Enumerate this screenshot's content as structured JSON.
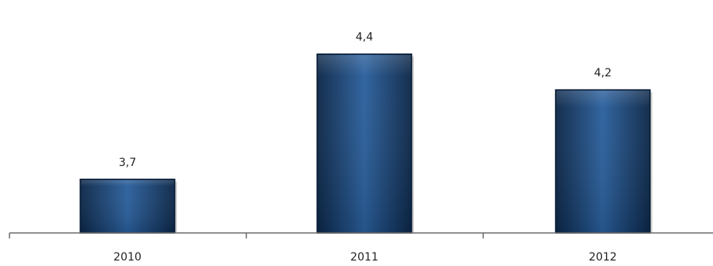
{
  "chart_data": {
    "type": "bar",
    "title": "",
    "xlabel": "",
    "ylabel": "",
    "categories": [
      "2010",
      "2011",
      "2012"
    ],
    "values": [
      3.7,
      4.4,
      4.2
    ],
    "value_labels": [
      "3,7",
      "4,4",
      "4,2"
    ],
    "ylim": [
      3.4,
      4.5
    ],
    "grid": false,
    "legend": "none",
    "colors": {
      "bar_fill": "#143f73",
      "bar_light": "#2a5f9c",
      "bar_dark": "#0b2647",
      "bar_border": "#071a33",
      "axis": "#6d6d6d"
    }
  }
}
